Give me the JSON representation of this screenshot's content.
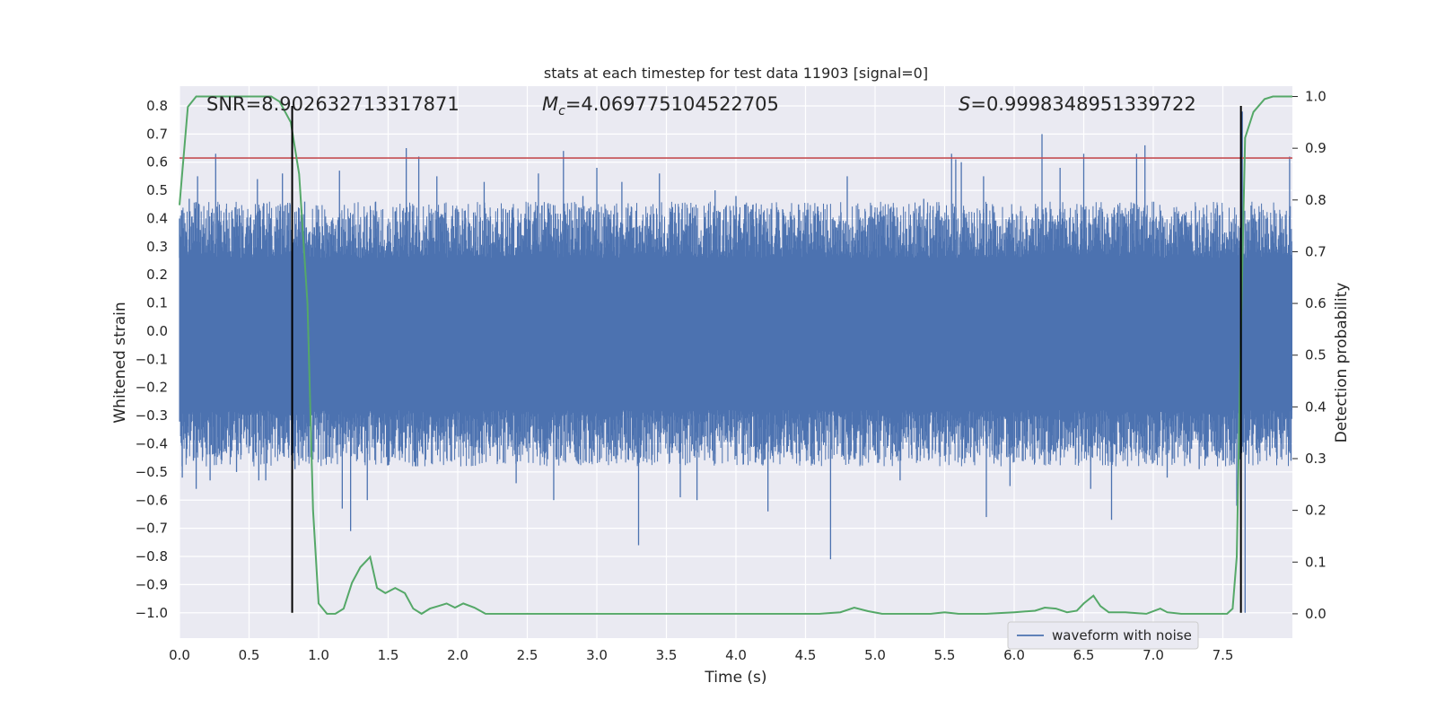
{
  "chart_data": {
    "type": "line",
    "title": "stats at each timestep for test data 11903 [signal=0]",
    "xlabel": "Time (s)",
    "ylabel": "Whitened strain",
    "y2label": "Detection probability",
    "xlim": [
      0.0,
      8.0
    ],
    "ylim": [
      -1.09,
      0.87
    ],
    "y2lim": [
      -0.047,
      1.02
    ],
    "xticks": [
      "0.0",
      "0.5",
      "1.0",
      "1.5",
      "2.0",
      "2.5",
      "3.0",
      "3.5",
      "4.0",
      "4.5",
      "5.0",
      "5.5",
      "6.0",
      "6.5",
      "7.0",
      "7.5"
    ],
    "xtick_values": [
      0.0,
      0.5,
      1.0,
      1.5,
      2.0,
      2.5,
      3.0,
      3.5,
      4.0,
      4.5,
      5.0,
      5.5,
      6.0,
      6.5,
      7.0,
      7.5
    ],
    "yticks": [
      "0.8",
      "0.7",
      "0.6",
      "0.5",
      "0.4",
      "0.3",
      "0.2",
      "0.1",
      "0.0",
      "−0.1",
      "−0.2",
      "−0.3",
      "−0.4",
      "−0.5",
      "−0.6",
      "−0.7",
      "−0.8",
      "−0.9",
      "−1.0"
    ],
    "ytick_values": [
      0.8,
      0.7,
      0.6,
      0.5,
      0.4,
      0.3,
      0.2,
      0.1,
      0.0,
      -0.1,
      -0.2,
      -0.3,
      -0.4,
      -0.5,
      -0.6,
      -0.7,
      -0.8,
      -0.9,
      -1.0
    ],
    "y2ticks": [
      "1.0",
      "0.9",
      "0.8",
      "0.7",
      "0.6",
      "0.5",
      "0.4",
      "0.3",
      "0.2",
      "0.1",
      "0.0"
    ],
    "y2tick_values": [
      1.0,
      0.9,
      0.8,
      0.7,
      0.6,
      0.5,
      0.4,
      0.3,
      0.2,
      0.1,
      0.0
    ],
    "annotations": {
      "snr": "SNR=8.902632713317871",
      "mc_symbol": "M",
      "mc_subscript": "c",
      "mc_value": "=4.069775104522705",
      "s_symbol": "S",
      "s_value": "=0.9998348951339722"
    },
    "legend": {
      "label": "waveform with noise",
      "placement": "lower-right"
    },
    "threshold": {
      "y": 0.615,
      "color": "#c44e52"
    },
    "vlines": [
      {
        "x": 0.81,
        "y_top": 0.8,
        "y_bottom": -1.0
      },
      {
        "x": 7.63,
        "y_top": 0.8,
        "y_bottom": -1.0
      }
    ],
    "series": [
      {
        "name": "waveform with noise",
        "color": "#4c72b0",
        "band": [
          -0.28,
          0.26
        ],
        "spikes": [
          {
            "x": 0.0,
            "y": 0.4
          },
          {
            "x": 0.02,
            "y": -0.52
          },
          {
            "x": 0.07,
            "y": 0.47
          },
          {
            "x": 0.1,
            "y": -0.46
          },
          {
            "x": 0.13,
            "y": 0.55
          },
          {
            "x": 0.12,
            "y": -0.56
          },
          {
            "x": 0.26,
            "y": 0.63
          },
          {
            "x": 0.22,
            "y": -0.53
          },
          {
            "x": 0.4,
            "y": 0.44
          },
          {
            "x": 0.41,
            "y": -0.5
          },
          {
            "x": 0.56,
            "y": 0.54
          },
          {
            "x": 0.57,
            "y": -0.53
          },
          {
            "x": 0.62,
            "y": -0.53
          },
          {
            "x": 0.74,
            "y": 0.56
          },
          {
            "x": 0.83,
            "y": -0.49
          },
          {
            "x": 0.9,
            "y": 0.46
          },
          {
            "x": 1.15,
            "y": 0.57
          },
          {
            "x": 1.17,
            "y": -0.63
          },
          {
            "x": 1.23,
            "y": -0.71
          },
          {
            "x": 1.35,
            "y": -0.6
          },
          {
            "x": 1.41,
            "y": 0.46
          },
          {
            "x": 1.63,
            "y": 0.65
          },
          {
            "x": 1.72,
            "y": 0.62
          },
          {
            "x": 1.7,
            "y": -0.48
          },
          {
            "x": 1.85,
            "y": 0.55
          },
          {
            "x": 1.95,
            "y": -0.46
          },
          {
            "x": 2.19,
            "y": 0.53
          },
          {
            "x": 2.42,
            "y": -0.54
          },
          {
            "x": 2.58,
            "y": 0.56
          },
          {
            "x": 2.69,
            "y": -0.6
          },
          {
            "x": 2.76,
            "y": 0.64
          },
          {
            "x": 2.9,
            "y": 0.48
          },
          {
            "x": 3.0,
            "y": 0.58
          },
          {
            "x": 3.18,
            "y": 0.53
          },
          {
            "x": 3.3,
            "y": -0.76
          },
          {
            "x": 3.45,
            "y": 0.56
          },
          {
            "x": 3.6,
            "y": -0.59
          },
          {
            "x": 3.72,
            "y": -0.6
          },
          {
            "x": 3.85,
            "y": 0.5
          },
          {
            "x": 4.0,
            "y": 0.48
          },
          {
            "x": 4.23,
            "y": -0.64
          },
          {
            "x": 4.45,
            "y": 0.45
          },
          {
            "x": 4.68,
            "y": -0.81
          },
          {
            "x": 4.8,
            "y": 0.55
          },
          {
            "x": 5.18,
            "y": -0.53
          },
          {
            "x": 5.35,
            "y": 0.47
          },
          {
            "x": 5.55,
            "y": 0.63
          },
          {
            "x": 5.58,
            "y": 0.61
          },
          {
            "x": 5.62,
            "y": 0.6
          },
          {
            "x": 5.78,
            "y": 0.55
          },
          {
            "x": 5.8,
            "y": -0.66
          },
          {
            "x": 5.97,
            "y": -0.55
          },
          {
            "x": 6.2,
            "y": 0.7
          },
          {
            "x": 6.33,
            "y": 0.58
          },
          {
            "x": 6.5,
            "y": 0.63
          },
          {
            "x": 6.55,
            "y": -0.56
          },
          {
            "x": 6.7,
            "y": -0.67
          },
          {
            "x": 6.88,
            "y": 0.63
          },
          {
            "x": 6.94,
            "y": 0.66
          },
          {
            "x": 7.1,
            "y": -0.52
          },
          {
            "x": 7.33,
            "y": -0.49
          },
          {
            "x": 7.6,
            "y": -0.62
          },
          {
            "x": 7.64,
            "y": 0.78
          },
          {
            "x": 7.66,
            "y": -1.0
          },
          {
            "x": 7.72,
            "y": 0.4
          },
          {
            "x": 7.98,
            "y": 0.62
          },
          {
            "x": 7.99,
            "y": -0.46
          }
        ]
      },
      {
        "name": "detection probability",
        "color": "#55a868",
        "axis": "right",
        "x": [
          0.0,
          0.06,
          0.12,
          0.2,
          0.3,
          0.4,
          0.5,
          0.6,
          0.66,
          0.72,
          0.76,
          0.8,
          0.86,
          0.92,
          0.96,
          1.0,
          1.06,
          1.12,
          1.18,
          1.24,
          1.3,
          1.37,
          1.42,
          1.48,
          1.55,
          1.62,
          1.68,
          1.74,
          1.8,
          1.86,
          1.92,
          1.98,
          2.04,
          2.12,
          2.2,
          2.26,
          2.4,
          2.6,
          2.8,
          3.0,
          3.2,
          3.4,
          3.6,
          3.8,
          4.0,
          4.2,
          4.4,
          4.6,
          4.75,
          4.85,
          4.95,
          5.05,
          5.2,
          5.4,
          5.5,
          5.6,
          5.8,
          6.0,
          6.15,
          6.22,
          6.3,
          6.38,
          6.45,
          6.5,
          6.57,
          6.62,
          6.68,
          6.8,
          6.95,
          7.05,
          7.1,
          7.2,
          7.3,
          7.4,
          7.48,
          7.53,
          7.57,
          7.6,
          7.63,
          7.66,
          7.72,
          7.8,
          7.86,
          7.92,
          8.0
        ],
        "y": [
          0.79,
          0.98,
          1.0,
          1.0,
          1.0,
          1.0,
          1.0,
          1.0,
          1.0,
          0.99,
          0.97,
          0.95,
          0.85,
          0.6,
          0.2,
          0.02,
          0.0,
          0.0,
          0.01,
          0.06,
          0.09,
          0.11,
          0.05,
          0.04,
          0.05,
          0.04,
          0.01,
          0.0,
          0.01,
          0.015,
          0.02,
          0.012,
          0.02,
          0.012,
          0.0,
          0.0,
          0.0,
          0.0,
          0.0,
          0.0,
          0.0,
          0.0,
          0.0,
          0.0,
          0.0,
          0.0,
          0.0,
          0.0,
          0.003,
          0.012,
          0.005,
          0.0,
          0.0,
          0.0,
          0.003,
          0.0,
          0.0,
          0.003,
          0.006,
          0.012,
          0.01,
          0.003,
          0.006,
          0.02,
          0.035,
          0.015,
          0.003,
          0.003,
          0.0,
          0.01,
          0.003,
          0.0,
          0.0,
          0.0,
          0.0,
          0.0,
          0.01,
          0.11,
          0.55,
          0.92,
          0.97,
          0.995,
          1.0,
          1.0,
          1.0
        ]
      }
    ]
  }
}
